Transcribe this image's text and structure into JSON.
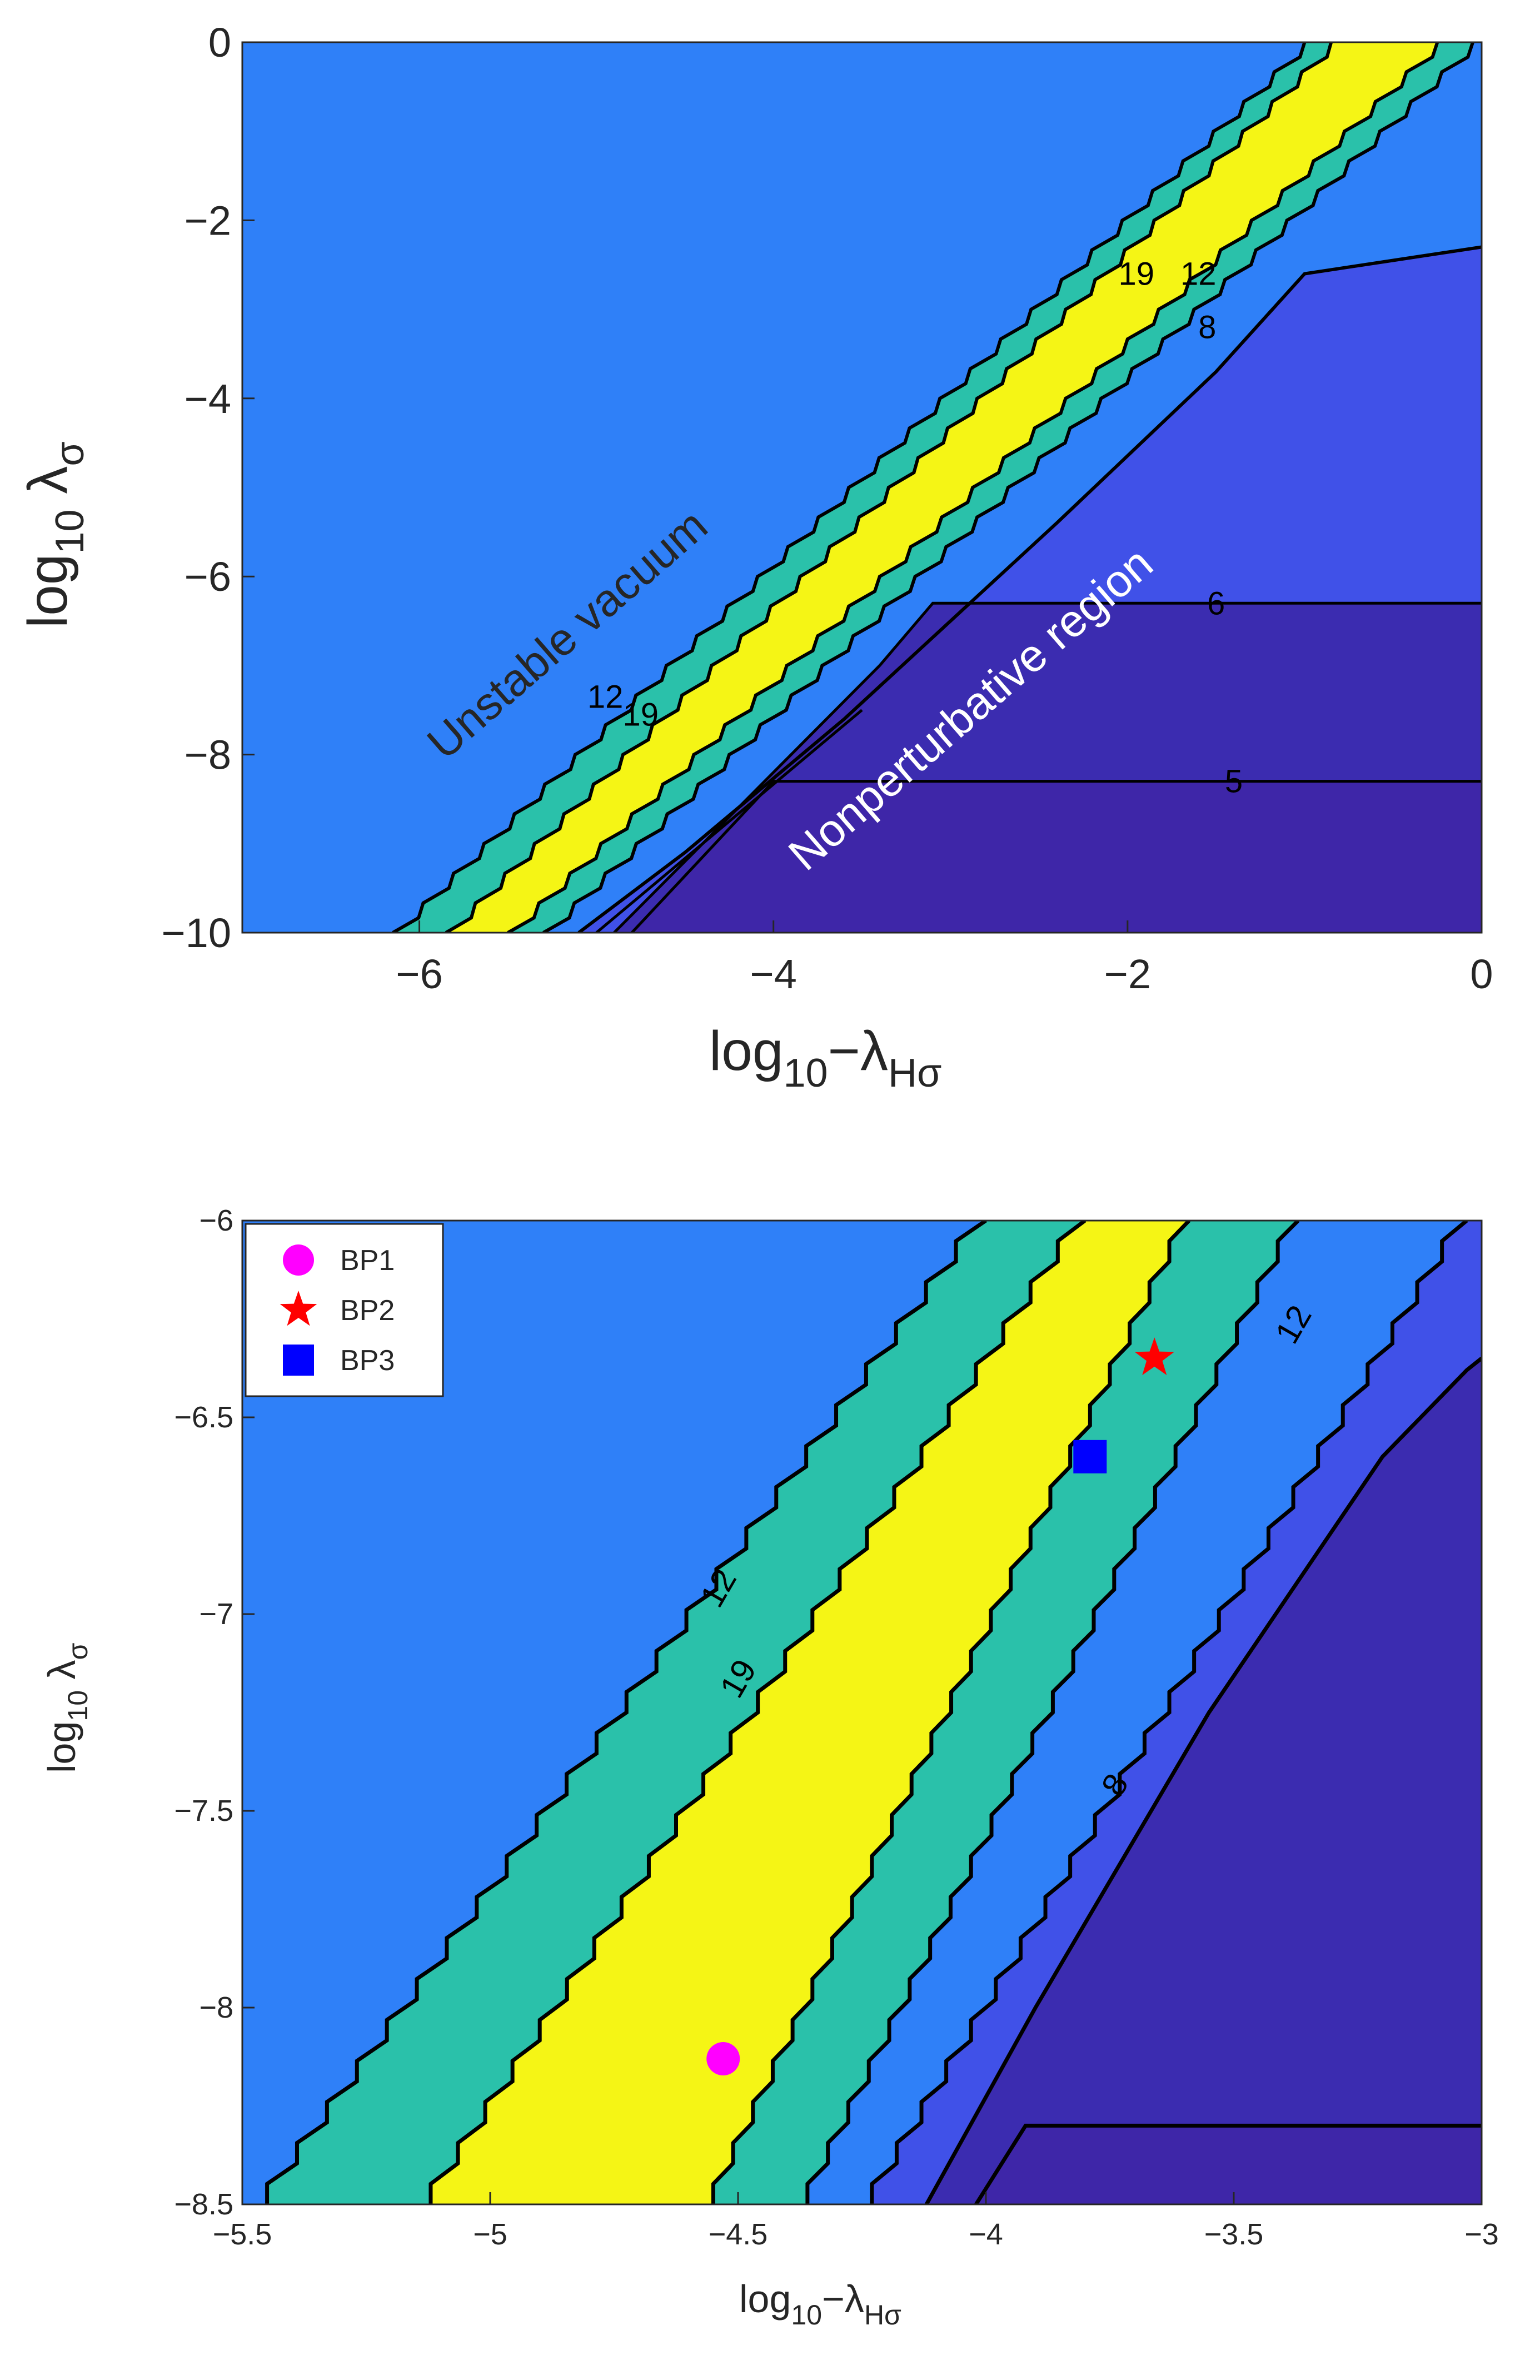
{
  "colors": {
    "c_lt5": "#3e26a8",
    "c_5_6": "#3b2cb0",
    "c_6_8": "#4051e8",
    "c_8_12": "#2f80f8",
    "c_12_19": "#2ac1aa",
    "c_ge19": "#f5f515",
    "background_region": "#2f80f8",
    "contour_line": "#000000",
    "bp1": "#ff00ff",
    "bp2": "#ff0000",
    "bp3": "#0000ff"
  },
  "chart_data": [
    {
      "type": "contour",
      "xlabel": "log₁₀ −λHσ",
      "ylabel": "log₁₀ λσ",
      "xlim": [
        -7,
        0
      ],
      "ylim": [
        -10,
        0
      ],
      "xticks": [
        "−6",
        "−4",
        "−2",
        "0"
      ],
      "xtick_values": [
        -6,
        -4,
        -2,
        0
      ],
      "yticks": [
        "0",
        "−2",
        "−4",
        "−6",
        "−8",
        "−10"
      ],
      "ytick_values": [
        0,
        -2,
        -4,
        -6,
        -8,
        -10
      ],
      "contour_levels": [
        5,
        6,
        8,
        12,
        19
      ],
      "annotations": [
        "Unstable vacuum",
        "Nonperturbative region"
      ],
      "band_contours": [
        {
          "level": 12,
          "left_bottom_x": -6.15,
          "right_top_x": -1.0
        },
        {
          "level": 19,
          "left_bottom_x": -5.85,
          "right_top_x": -0.85
        },
        {
          "level": 19,
          "left_bottom_x": -5.5,
          "right_top_x": -0.25
        },
        {
          "level": 12,
          "left_bottom_x": -5.3,
          "right_top_x": -0.05
        }
      ],
      "level8_contour": [
        [
          -5.1,
          -10
        ],
        [
          -4.5,
          -9.1
        ],
        [
          -3.6,
          -7.6
        ],
        [
          -2.4,
          -5.4
        ],
        [
          -1.5,
          -3.7
        ],
        [
          -1.0,
          -2.6
        ],
        [
          0,
          -2.3
        ]
      ],
      "level6_contour": [
        [
          -3.1,
          -6.3
        ],
        [
          0,
          -6.3
        ]
      ],
      "level5_contour": [
        [
          -4.0,
          -8.3
        ],
        [
          0,
          -8.3
        ]
      ],
      "contour_labels": [
        {
          "text": "19",
          "x": -1.95,
          "y": -2.6
        },
        {
          "text": "12",
          "x": -1.6,
          "y": -2.6
        },
        {
          "text": "8",
          "x": -1.55,
          "y": -3.2
        },
        {
          "text": "6",
          "x": -1.5,
          "y": -6.3
        },
        {
          "text": "5",
          "x": -1.4,
          "y": -8.3
        },
        {
          "text": "12",
          "x": -4.95,
          "y": -7.35
        },
        {
          "text": "19",
          "x": -4.75,
          "y": -7.55
        }
      ]
    },
    {
      "type": "contour",
      "xlabel": "log₁₀−λHσ",
      "ylabel": "log₁₀ λσ",
      "xlim": [
        -5.5,
        -3
      ],
      "ylim": [
        -8.5,
        -6
      ],
      "xticks": [
        "−5.5",
        "−5",
        "−4.5",
        "−4",
        "−3.5",
        "−3"
      ],
      "xtick_values": [
        -5.5,
        -5,
        -4.5,
        -4,
        -3.5,
        -3
      ],
      "yticks": [
        "−6",
        "−6.5",
        "−7",
        "−7.5",
        "−8",
        "−8.5"
      ],
      "ytick_values": [
        -6,
        -6.5,
        -7,
        -7.5,
        -8,
        -8.5
      ],
      "contour_levels": [
        5,
        6,
        8,
        12,
        19
      ],
      "band_contours": [
        {
          "level": 12,
          "left_bottom_x": -5.45,
          "right_top_x": -4.0
        },
        {
          "level": 19,
          "left_bottom_x": -5.12,
          "right_top_x": -3.8
        },
        {
          "level": 19,
          "left_bottom_x": -4.55,
          "right_top_x": -3.59
        },
        {
          "level": 12,
          "left_bottom_x": -4.36,
          "right_top_x": -3.37
        },
        {
          "level": 8,
          "left_bottom_x": -4.23,
          "right_top_x": -3.03
        }
      ],
      "level6_contour": [
        [
          -4.12,
          -8.5
        ],
        [
          -3.9,
          -8.0
        ],
        [
          -3.55,
          -7.25
        ],
        [
          -3.2,
          -6.6
        ],
        [
          -3.03,
          -6.38
        ],
        [
          -3.0,
          -6.35
        ]
      ],
      "level5_contour": [
        [
          -4.02,
          -8.5
        ],
        [
          -3.92,
          -8.3
        ],
        [
          -3.0,
          -8.3
        ]
      ],
      "contour_labels": [
        {
          "text": "12",
          "x": -4.52,
          "y": -6.92
        },
        {
          "text": "19",
          "x": -4.48,
          "y": -7.15
        },
        {
          "text": "8",
          "x": -3.72,
          "y": -7.42
        },
        {
          "text": "12",
          "x": -3.36,
          "y": -6.25
        }
      ],
      "series": [
        {
          "name": "BP1",
          "marker": "circle",
          "x": [
            -4.53
          ],
          "y": [
            -8.13
          ]
        },
        {
          "name": "BP2",
          "marker": "star",
          "x": [
            -3.66
          ],
          "y": [
            -6.35
          ]
        },
        {
          "name": "BP3",
          "marker": "square",
          "x": [
            -3.79
          ],
          "y": [
            -6.6
          ]
        }
      ],
      "legend": {
        "placement": "top-left",
        "entries": [
          "BP1",
          "BP2",
          "BP3"
        ]
      }
    }
  ]
}
